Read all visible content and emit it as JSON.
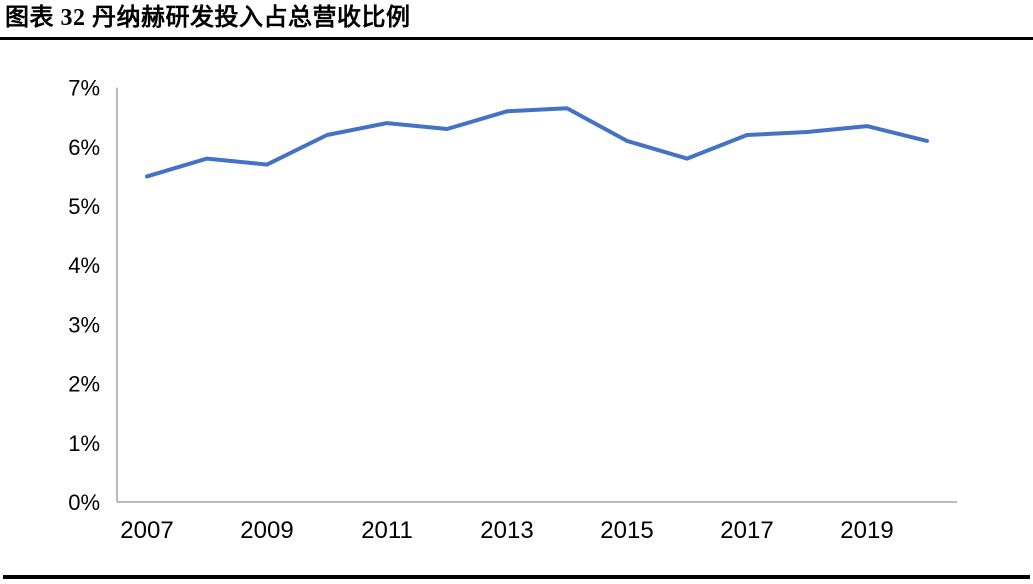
{
  "header": {
    "title": "图表 32 丹纳赫研发投入占总营收比例"
  },
  "chart_data": {
    "type": "line",
    "title": "图表 32 丹纳赫研发投入占总营收比例",
    "x": [
      2007,
      2008,
      2009,
      2010,
      2011,
      2012,
      2013,
      2014,
      2015,
      2016,
      2017,
      2018,
      2019,
      2020
    ],
    "series": [
      {
        "name": "",
        "values": [
          5.5,
          5.8,
          5.7,
          6.2,
          6.4,
          6.3,
          6.6,
          6.65,
          6.1,
          5.8,
          6.2,
          6.25,
          6.35,
          6.1
        ]
      }
    ],
    "xlabel": "",
    "ylabel": "",
    "ylim": [
      0,
      7
    ],
    "y_tick_labels": [
      "0%",
      "1%",
      "2%",
      "3%",
      "4%",
      "5%",
      "6%",
      "7%"
    ],
    "x_tick_labels": [
      "2007",
      "2009",
      "2011",
      "2013",
      "2015",
      "2017",
      "2019"
    ],
    "grid": false,
    "legend_position": "none",
    "colors": {
      "line": "#4472C4",
      "axis": "#A6A6A6",
      "text": "#000000",
      "rule": "#000000"
    }
  }
}
